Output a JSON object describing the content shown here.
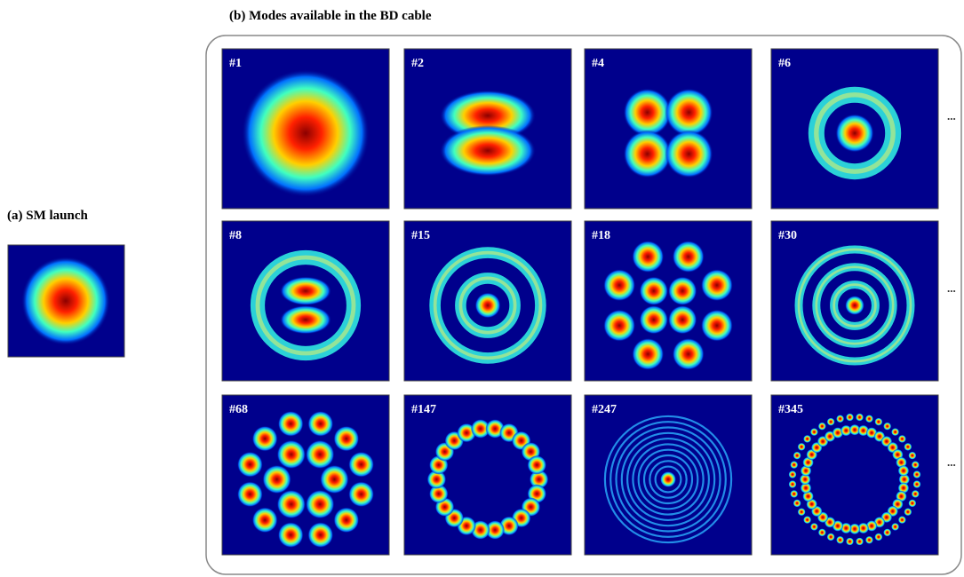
{
  "panel_a": {
    "label": "(a) SM launch"
  },
  "panel_b": {
    "title": "(b) Modes available in the BD cable",
    "rows": [
      {
        "modes": [
          "#1",
          "#2",
          "#4",
          "#6"
        ],
        "more": "..."
      },
      {
        "modes": [
          "#8",
          "#15",
          "#18",
          "#30"
        ],
        "more": "..."
      },
      {
        "modes": [
          "#68",
          "#147",
          "#247",
          "#345"
        ],
        "more": "..."
      }
    ]
  }
}
